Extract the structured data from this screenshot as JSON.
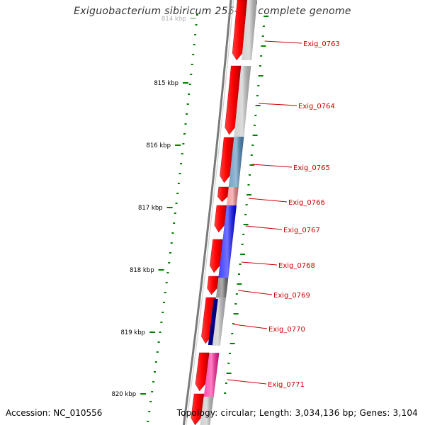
{
  "header": {
    "title": "Exiguobacterium sibiricum 255-15, complete genome"
  },
  "footer": {
    "accession": "Accession: NC_010556",
    "summary": "Topology: circular; Length: 3,034,136 bp; Genes: 3,104"
  },
  "scale": {
    "ticks": [
      "814 kbp",
      "815 kbp",
      "816 kbp",
      "817 kbp",
      "818 kbp",
      "819 kbp",
      "820 kbp"
    ]
  },
  "genes": [
    {
      "label": "Exig_0763",
      "color": "#C0C0C0"
    },
    {
      "label": "Exig_0764",
      "color": "#C0C0C0"
    },
    {
      "label": "Exig_0765",
      "color": "#4682B4"
    },
    {
      "label": "Exig_0766",
      "color": "#F08080"
    },
    {
      "label": "Exig_0767",
      "color": "#0000FF"
    },
    {
      "label": "Exig_0768",
      "color": "#0000FF"
    },
    {
      "label": "Exig_0769",
      "color": "#696969"
    },
    {
      "label": "Exig_0770",
      "color": "#000080"
    },
    {
      "label": "Exig_0771",
      "color": "#FF1493"
    }
  ],
  "colors": {
    "cds_strand": "#FF0000",
    "backbone": "#808080",
    "gc_ticks": "#008000",
    "gene_label": "#CC0000"
  }
}
